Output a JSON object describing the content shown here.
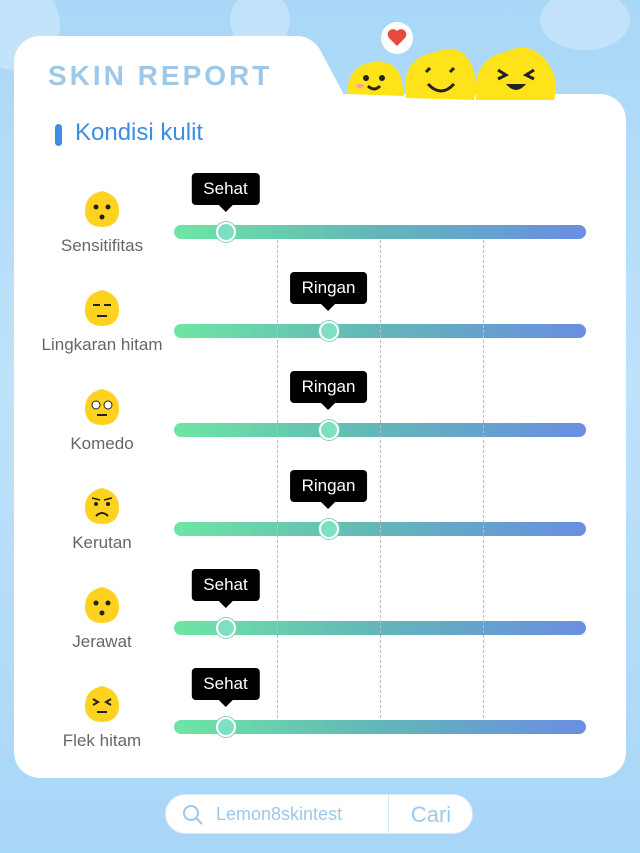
{
  "header": {
    "title": "SKIN REPORT"
  },
  "section": {
    "title": "Kondisi kulit"
  },
  "colors": {
    "accent": "#3b8fe0",
    "track_start": "#6ee5a4",
    "track_end": "#6a8ee3"
  },
  "metrics": [
    {
      "label": "Sensitifitas",
      "status": "Sehat",
      "level": 0.125,
      "icon": "sensitive-face-icon"
    },
    {
      "label": "Lingkaran hitam",
      "status": "Ringan",
      "level": 0.375,
      "icon": "tired-face-icon"
    },
    {
      "label": "Komedo",
      "status": "Ringan",
      "level": 0.375,
      "icon": "pore-face-icon"
    },
    {
      "label": "Kerutan",
      "status": "Ringan",
      "level": 0.375,
      "icon": "frown-face-icon"
    },
    {
      "label": "Jerawat",
      "status": "Sehat",
      "level": 0.125,
      "icon": "surprised-face-icon"
    },
    {
      "label": "Flek hitam",
      "status": "Sehat",
      "level": 0.125,
      "icon": "spotted-face-icon"
    }
  ],
  "search": {
    "query": "Lemon8skintest",
    "button_label": "Cari"
  }
}
